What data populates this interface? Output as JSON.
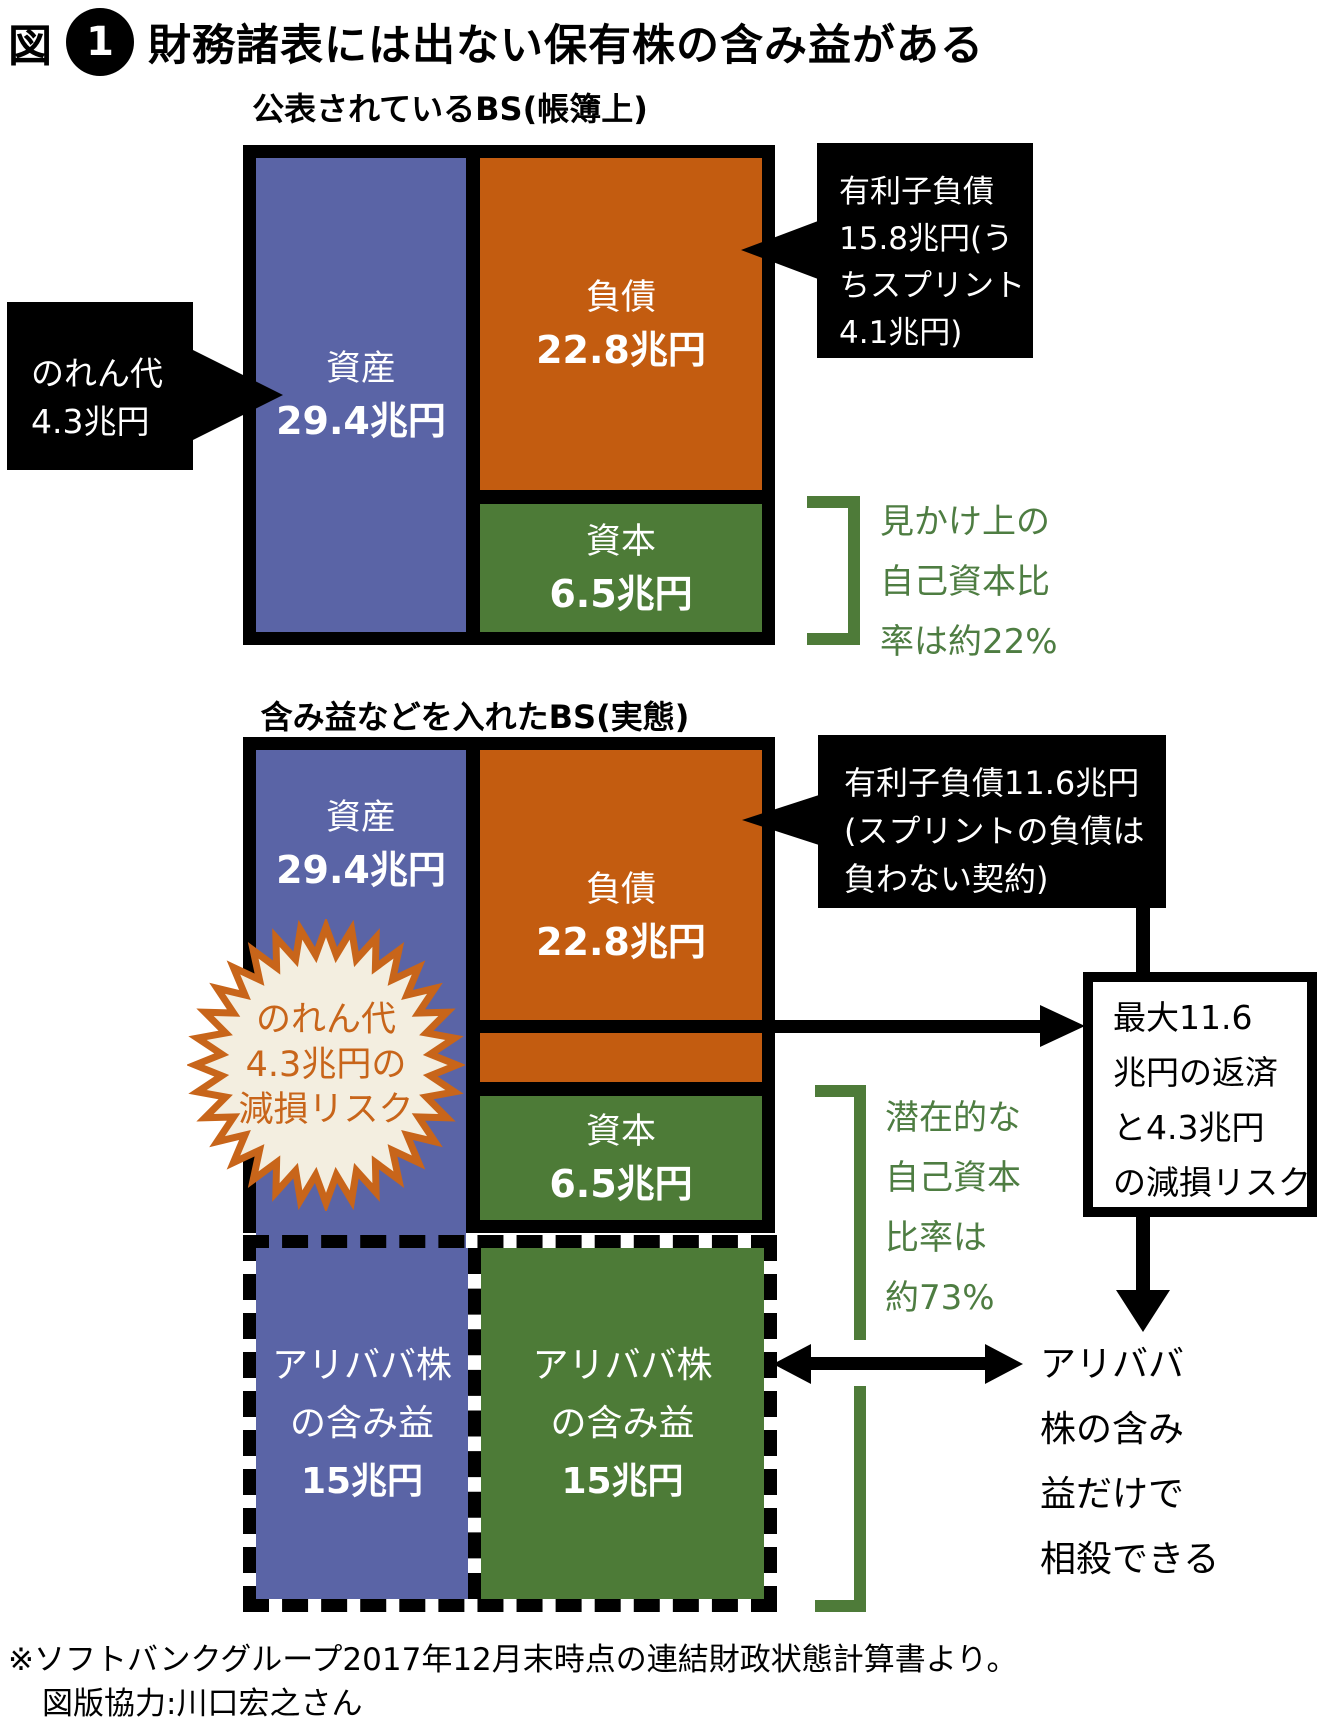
{
  "title": {
    "prefix": "図",
    "number": "1",
    "text": "財務諸表には出ない保有株の含み益がある"
  },
  "bs1": {
    "subtitle": "公表されているBS(帳簿上)",
    "assets": {
      "label": "資産",
      "value": "29.4兆円"
    },
    "liabilities": {
      "label": "負債",
      "value": "22.8兆円"
    },
    "equity": {
      "label": "資本",
      "value": "6.5兆円"
    },
    "goodwill_callout": {
      "lines": [
        "のれん代",
        "4.3兆円"
      ]
    },
    "debt_callout": {
      "lines": [
        "有利子負債",
        "15.8兆円(う",
        "ちスプリント",
        "4.1兆円)"
      ]
    },
    "equity_note": {
      "lines": [
        "見かけ上の",
        "自己資本比",
        "率は約22%"
      ]
    }
  },
  "bs2": {
    "subtitle": "含み益などを入れたBS(実態)",
    "assets": {
      "label": "資産",
      "value": "29.4兆円"
    },
    "liabilities": {
      "label": "負債",
      "value": "22.8兆円"
    },
    "equity": {
      "label": "資本",
      "value": "6.5兆円"
    },
    "starburst": {
      "lines": [
        "のれん代",
        "4.3兆円の",
        "減損リスク"
      ]
    },
    "debt_callout": {
      "lines": [
        "有利子負債11.6兆円",
        "(スプリントの負債は",
        "負わない契約)"
      ]
    },
    "equity_note": {
      "lines": [
        "潜在的な",
        "自己資本",
        "比率は",
        "約73%"
      ]
    },
    "alibaba_left": {
      "lines": [
        "アリババ株",
        "の含み益"
      ],
      "value": "15兆円"
    },
    "alibaba_right": {
      "lines": [
        "アリババ株",
        "の含み益"
      ],
      "value": "15兆円"
    },
    "risk_box": {
      "lines": [
        "最大11.6",
        "兆円の返済",
        "と4.3兆円",
        "の減損リスク"
      ]
    },
    "offset_note": {
      "lines": [
        "アリババ",
        "株の含み",
        "益だけで",
        "相殺できる"
      ]
    }
  },
  "footer": {
    "source": "※ソフトバンクグループ2017年12月末時点の連結財政状態計算書より。",
    "credit": "図版協力:川口宏之さん"
  },
  "colors": {
    "assets_blue": "#5a64a6",
    "liabilities_orange": "#c35c10",
    "equity_green": "#4d7b37",
    "note_green": "#4e7d42",
    "starburst_stroke": "#c8651a",
    "starburst_fill": "#f3eee0",
    "callout_black": "#000000"
  }
}
